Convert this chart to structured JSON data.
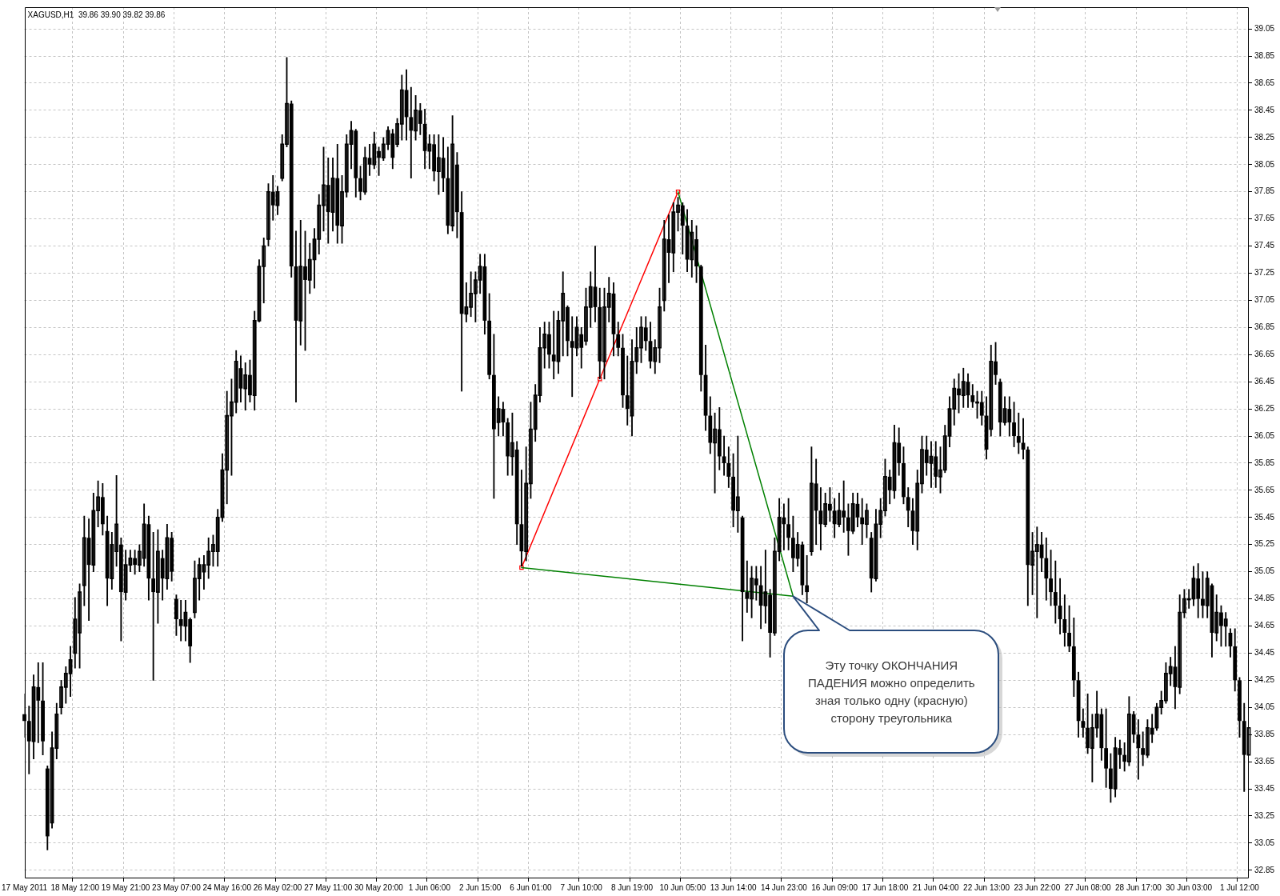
{
  "chart_data": {
    "type": "candlestick",
    "title": "XAGUSD,H1  39.86 39.90 39.82 39.86",
    "categories": [
      "17 May 2011",
      null,
      null,
      null,
      null,
      null,
      null,
      null,
      null,
      null,
      null,
      "18 May 12:00",
      null,
      null,
      null,
      null,
      null,
      null,
      null,
      null,
      null,
      null,
      "19 May 21:00",
      null,
      null,
      null,
      null,
      null,
      null,
      null,
      null,
      null,
      null,
      "23 May 07:00",
      null,
      null,
      null,
      null,
      null,
      null,
      null,
      null,
      null,
      null,
      "24 May 16:00",
      null,
      null,
      null,
      null,
      null,
      null,
      null,
      null,
      null,
      null,
      "26 May 02:00",
      null,
      null,
      null,
      null,
      null,
      null,
      null,
      null,
      null,
      null,
      "27 May 11:00",
      null,
      null,
      null,
      null,
      null,
      null,
      null,
      null,
      null,
      null,
      "30 May 20:00",
      null,
      null,
      null,
      null,
      null,
      null,
      null,
      null,
      null,
      null,
      "1 Jun 06:00",
      null,
      null,
      null,
      null,
      null,
      null,
      null,
      null,
      null,
      null,
      "2 Jun 15:00",
      null,
      null,
      null,
      null,
      null,
      null,
      null,
      null,
      null,
      null,
      "6 Jun 01:00",
      null,
      null,
      null,
      null,
      null,
      null,
      null,
      null,
      null,
      null,
      "7 Jun 10:00",
      null,
      null,
      null,
      null,
      null,
      null,
      null,
      null,
      null,
      null,
      "8 Jun 19:00",
      null,
      null,
      null,
      null,
      null,
      null,
      null,
      null,
      null,
      null,
      "10 Jun 05:00",
      null,
      null,
      null,
      null,
      null,
      null,
      null,
      null,
      null,
      null,
      "13 Jun 14:00",
      null,
      null,
      null,
      null,
      null,
      null,
      null,
      null,
      null,
      null,
      "14 Jun 23:00",
      null,
      null,
      null,
      null,
      null,
      null,
      null,
      null,
      null,
      null,
      "16 Jun 09:00",
      null,
      null,
      null,
      null,
      null,
      null,
      null,
      null,
      null,
      null,
      "17 Jun 18:00",
      null,
      null,
      null,
      null,
      null,
      null,
      null,
      null,
      null,
      null,
      "21 Jun 04:00",
      null,
      null,
      null,
      null,
      null,
      null,
      null,
      null,
      null,
      null,
      "22 Jun 13:00",
      null,
      null,
      null,
      null,
      null,
      null,
      null,
      null,
      null,
      null,
      "23 Jun 22:00",
      null,
      null,
      null,
      null,
      null,
      null,
      null,
      null,
      null,
      null,
      "27 Jun 08:00",
      null,
      null,
      null,
      null,
      null,
      null,
      null,
      null,
      null,
      null,
      "28 Jun 17:00",
      null,
      null,
      null,
      null,
      null,
      null,
      null,
      null,
      null,
      null,
      "30 Jun 03:00",
      null,
      null,
      null,
      null,
      null,
      null,
      null,
      null,
      null,
      null,
      "1 Jul 12:00",
      null,
      null
    ],
    "ohlc": [
      [
        34.0,
        34.15,
        33.83,
        33.95
      ],
      [
        33.95,
        34.06,
        33.56,
        33.8
      ],
      [
        33.8,
        34.29,
        33.67,
        34.2
      ],
      [
        34.2,
        34.38,
        33.79,
        34.1
      ],
      [
        34.1,
        34.38,
        33.7,
        33.8
      ],
      [
        33.6,
        33.62,
        33.0,
        33.1
      ],
      [
        33.2,
        33.87,
        33.16,
        33.75
      ],
      [
        33.75,
        34.08,
        33.67,
        34.0
      ],
      [
        34.05,
        34.25,
        34.0,
        34.2
      ],
      [
        34.2,
        34.35,
        34.08,
        34.3
      ],
      [
        34.3,
        34.5,
        34.13,
        34.4
      ],
      [
        34.45,
        34.86,
        34.34,
        34.7
      ],
      [
        34.6,
        34.96,
        34.34,
        34.9
      ],
      [
        34.95,
        35.46,
        34.8,
        35.3
      ],
      [
        35.3,
        35.44,
        34.69,
        35.1
      ],
      [
        35.1,
        35.63,
        35.05,
        35.5
      ],
      [
        35.5,
        35.72,
        35.38,
        35.6
      ],
      [
        35.6,
        35.7,
        35.32,
        35.4
      ],
      [
        35.35,
        35.46,
        34.8,
        35.0
      ],
      [
        35.0,
        35.34,
        34.92,
        35.25
      ],
      [
        35.2,
        35.76,
        35.09,
        35.4
      ],
      [
        35.25,
        35.3,
        34.54,
        34.9
      ],
      [
        34.9,
        35.21,
        34.84,
        35.1
      ],
      [
        35.1,
        35.21,
        35.05,
        35.15
      ],
      [
        35.15,
        35.21,
        35.03,
        35.1
      ],
      [
        35.1,
        35.25,
        35.05,
        35.2
      ],
      [
        35.15,
        35.55,
        35.09,
        35.4
      ],
      [
        35.4,
        35.46,
        34.84,
        35.0
      ],
      [
        35.0,
        35.34,
        34.25,
        34.9
      ],
      [
        34.9,
        35.36,
        34.67,
        35.2
      ],
      [
        35.15,
        35.21,
        34.84,
        35.0
      ],
      [
        35.0,
        35.4,
        34.92,
        35.3
      ],
      [
        35.3,
        35.34,
        34.98,
        35.05
      ],
      [
        34.85,
        34.88,
        34.58,
        34.7
      ],
      [
        34.7,
        34.84,
        34.54,
        34.65
      ],
      [
        34.65,
        34.84,
        34.54,
        34.75
      ],
      [
        34.7,
        34.71,
        34.38,
        34.5
      ],
      [
        34.75,
        35.13,
        34.71,
        35.0
      ],
      [
        35.0,
        35.15,
        34.84,
        35.1
      ],
      [
        35.05,
        35.17,
        34.92,
        35.1
      ],
      [
        35.1,
        35.3,
        35.0,
        35.2
      ],
      [
        35.2,
        35.32,
        35.09,
        35.25
      ],
      [
        35.2,
        35.51,
        35.09,
        35.45
      ],
      [
        35.45,
        35.92,
        35.42,
        35.8
      ],
      [
        35.8,
        36.38,
        35.55,
        36.2
      ],
      [
        36.2,
        36.47,
        35.76,
        36.3
      ],
      [
        36.3,
        36.68,
        36.22,
        36.6
      ],
      [
        36.55,
        36.64,
        36.3,
        36.4
      ],
      [
        36.4,
        36.59,
        36.24,
        36.5
      ],
      [
        36.5,
        36.61,
        36.3,
        36.35
      ],
      [
        36.35,
        36.97,
        36.24,
        36.9
      ],
      [
        36.9,
        37.35,
        36.89,
        37.3
      ],
      [
        37.3,
        37.51,
        37.03,
        37.45
      ],
      [
        37.5,
        37.91,
        37.45,
        37.85
      ],
      [
        37.85,
        37.97,
        37.64,
        37.75
      ],
      [
        37.75,
        37.89,
        37.68,
        37.85
      ],
      [
        37.95,
        38.27,
        37.93,
        38.2
      ],
      [
        38.2,
        38.84,
        38.18,
        38.5
      ],
      [
        38.5,
        38.52,
        37.22,
        37.3
      ],
      [
        37.3,
        37.56,
        36.3,
        36.9
      ],
      [
        36.9,
        37.64,
        36.72,
        37.3
      ],
      [
        37.3,
        37.56,
        36.68,
        37.2
      ],
      [
        37.2,
        37.47,
        37.1,
        37.35
      ],
      [
        37.35,
        37.58,
        37.14,
        37.5
      ],
      [
        37.5,
        37.83,
        37.39,
        37.75
      ],
      [
        37.75,
        38.18,
        37.56,
        37.9
      ],
      [
        37.9,
        38.1,
        37.47,
        37.7
      ],
      [
        37.7,
        38.1,
        37.56,
        37.95
      ],
      [
        37.95,
        38.2,
        37.47,
        37.6
      ],
      [
        37.6,
        37.97,
        37.47,
        37.85
      ],
      [
        37.85,
        38.27,
        37.81,
        38.2
      ],
      [
        38.2,
        38.37,
        38.02,
        38.3
      ],
      [
        38.3,
        38.31,
        37.81,
        37.95
      ],
      [
        37.95,
        38.04,
        37.79,
        37.85
      ],
      [
        37.85,
        38.18,
        37.83,
        38.1
      ],
      [
        38.1,
        38.2,
        37.97,
        38.05
      ],
      [
        38.05,
        38.29,
        38.02,
        38.2
      ],
      [
        38.15,
        38.18,
        37.97,
        38.1
      ],
      [
        38.1,
        38.25,
        38.08,
        38.2
      ],
      [
        38.2,
        38.33,
        38.16,
        38.3
      ],
      [
        38.28,
        38.31,
        38.02,
        38.1
      ],
      [
        38.2,
        38.39,
        38.18,
        38.35
      ],
      [
        38.35,
        38.71,
        38.23,
        38.6
      ],
      [
        38.6,
        38.75,
        38.23,
        38.4
      ],
      [
        38.4,
        38.62,
        37.95,
        38.3
      ],
      [
        38.3,
        38.56,
        38.23,
        38.45
      ],
      [
        38.45,
        38.5,
        38.27,
        38.35
      ],
      [
        38.35,
        38.46,
        38.02,
        38.15
      ],
      [
        38.15,
        38.27,
        38.02,
        38.2
      ],
      [
        38.2,
        38.27,
        37.93,
        38.0
      ],
      [
        38.0,
        38.27,
        37.83,
        38.1
      ],
      [
        38.1,
        38.25,
        37.85,
        37.95
      ],
      [
        37.95,
        38.18,
        37.54,
        37.6
      ],
      [
        37.6,
        38.41,
        37.56,
        38.2
      ],
      [
        38.05,
        38.14,
        37.51,
        37.7
      ],
      [
        37.7,
        37.85,
        36.38,
        36.95
      ],
      [
        36.95,
        37.18,
        36.89,
        37.0
      ],
      [
        37.0,
        37.26,
        36.93,
        37.1
      ],
      [
        37.1,
        37.26,
        36.89,
        37.2
      ],
      [
        37.2,
        37.39,
        37.1,
        37.3
      ],
      [
        37.3,
        37.39,
        36.8,
        36.9
      ],
      [
        36.9,
        37.1,
        36.47,
        36.5
      ],
      [
        36.5,
        36.8,
        35.59,
        36.1
      ],
      [
        36.15,
        36.34,
        36.05,
        36.25
      ],
      [
        36.25,
        36.3,
        36.05,
        36.15
      ],
      [
        36.15,
        36.18,
        35.76,
        35.9
      ],
      [
        35.9,
        36.22,
        35.76,
        36.0
      ],
      [
        35.95,
        36.01,
        35.25,
        35.4
      ],
      [
        35.4,
        35.8,
        35.09,
        35.2
      ],
      [
        35.2,
        35.97,
        35.13,
        35.7
      ],
      [
        35.7,
        36.3,
        35.59,
        36.1
      ],
      [
        36.1,
        36.43,
        36.01,
        36.35
      ],
      [
        36.35,
        36.85,
        36.3,
        36.7
      ],
      [
        36.7,
        36.89,
        36.55,
        36.8
      ],
      [
        36.8,
        36.89,
        36.55,
        36.65
      ],
      [
        36.65,
        36.97,
        36.47,
        36.6
      ],
      [
        36.6,
        36.97,
        36.51,
        36.9
      ],
      [
        36.9,
        37.26,
        36.64,
        37.1
      ],
      [
        37.0,
        37.01,
        36.64,
        36.75
      ],
      [
        36.75,
        36.93,
        36.34,
        36.7
      ],
      [
        36.7,
        36.93,
        36.64,
        36.85
      ],
      [
        36.8,
        36.85,
        36.55,
        36.7
      ],
      [
        36.75,
        37.14,
        36.72,
        37.0
      ],
      [
        37.0,
        37.26,
        36.85,
        37.15
      ],
      [
        37.15,
        37.45,
        36.89,
        37.0
      ],
      [
        37.0,
        37.14,
        36.47,
        36.6
      ],
      [
        36.6,
        37.14,
        36.47,
        37.0
      ],
      [
        37.0,
        37.22,
        36.89,
        37.1
      ],
      [
        37.1,
        37.18,
        36.64,
        36.8
      ],
      [
        36.8,
        36.89,
        36.64,
        36.7
      ],
      [
        36.7,
        36.8,
        36.26,
        36.35
      ],
      [
        36.35,
        36.64,
        36.13,
        36.25
      ],
      [
        36.2,
        36.76,
        36.05,
        36.6
      ],
      [
        36.6,
        36.85,
        36.51,
        36.7
      ],
      [
        36.7,
        36.93,
        36.59,
        36.85
      ],
      [
        36.85,
        36.93,
        36.68,
        36.75
      ],
      [
        36.75,
        36.89,
        36.55,
        36.6
      ],
      [
        36.6,
        36.76,
        36.51,
        36.7
      ],
      [
        36.7,
        37.14,
        36.59,
        37.0
      ],
      [
        37.05,
        37.64,
        36.97,
        37.5
      ],
      [
        37.5,
        37.68,
        37.18,
        37.4
      ],
      [
        37.4,
        37.77,
        37.26,
        37.7
      ],
      [
        37.7,
        37.81,
        37.56,
        37.75
      ],
      [
        37.75,
        37.77,
        37.39,
        37.6
      ],
      [
        37.6,
        37.72,
        37.26,
        37.35
      ],
      [
        37.35,
        37.64,
        37.22,
        37.55
      ],
      [
        37.5,
        37.6,
        37.18,
        37.3
      ],
      [
        37.3,
        37.31,
        36.38,
        36.5
      ],
      [
        36.5,
        36.72,
        36.09,
        36.2
      ],
      [
        36.2,
        36.34,
        35.92,
        36.0
      ],
      [
        36.0,
        36.22,
        35.63,
        36.1
      ],
      [
        36.1,
        36.26,
        35.8,
        35.9
      ],
      [
        35.9,
        36.05,
        35.76,
        35.85
      ],
      [
        35.85,
        35.97,
        35.67,
        35.75
      ],
      [
        35.75,
        35.92,
        35.38,
        35.5
      ],
      [
        35.5,
        36.05,
        35.34,
        35.6
      ],
      [
        35.45,
        35.46,
        34.54,
        34.9
      ],
      [
        34.9,
        35.13,
        34.75,
        34.85
      ],
      [
        34.85,
        35.09,
        34.71,
        35.0
      ],
      [
        35.0,
        35.09,
        34.84,
        34.95
      ],
      [
        34.95,
        35.09,
        34.63,
        34.8
      ],
      [
        34.8,
        35.21,
        34.67,
        34.9
      ],
      [
        34.88,
        34.92,
        34.42,
        34.6
      ],
      [
        34.6,
        35.3,
        34.58,
        35.2
      ],
      [
        35.2,
        35.59,
        35.13,
        35.45
      ],
      [
        35.45,
        35.55,
        35.21,
        35.4
      ],
      [
        35.4,
        35.59,
        35.21,
        35.3
      ],
      [
        35.3,
        35.46,
        35.05,
        35.15
      ],
      [
        35.15,
        35.34,
        35.09,
        35.25
      ],
      [
        35.25,
        35.27,
        34.88,
        34.95
      ],
      [
        34.95,
        35.17,
        34.82,
        34.9
      ],
      [
        35.2,
        35.97,
        35.17,
        35.7
      ],
      [
        35.7,
        35.88,
        35.25,
        35.5
      ],
      [
        35.5,
        35.67,
        35.21,
        35.4
      ],
      [
        35.4,
        35.63,
        35.38,
        35.55
      ],
      [
        35.55,
        35.67,
        35.42,
        35.5
      ],
      [
        35.5,
        35.59,
        35.3,
        35.4
      ],
      [
        35.4,
        35.63,
        35.38,
        35.5
      ],
      [
        35.5,
        35.72,
        35.34,
        35.45
      ],
      [
        35.45,
        35.55,
        35.17,
        35.35
      ],
      [
        35.35,
        35.63,
        35.33,
        35.55
      ],
      [
        35.55,
        35.63,
        35.38,
        35.45
      ],
      [
        35.45,
        35.59,
        35.25,
        35.4
      ],
      [
        35.4,
        35.55,
        35.3,
        35.5
      ],
      [
        35.3,
        35.34,
        34.9,
        35.0
      ],
      [
        35.0,
        35.51,
        34.98,
        35.4
      ],
      [
        35.4,
        35.59,
        35.3,
        35.5
      ],
      [
        35.5,
        35.88,
        35.46,
        35.75
      ],
      [
        35.75,
        35.8,
        35.55,
        35.65
      ],
      [
        35.65,
        36.13,
        35.59,
        36.0
      ],
      [
        36.0,
        36.11,
        35.76,
        35.85
      ],
      [
        35.85,
        35.97,
        35.55,
        35.6
      ],
      [
        35.6,
        35.67,
        35.38,
        35.5
      ],
      [
        35.5,
        35.59,
        35.25,
        35.35
      ],
      [
        35.35,
        35.8,
        35.21,
        35.7
      ],
      [
        35.7,
        36.05,
        35.63,
        35.95
      ],
      [
        35.95,
        36.05,
        35.76,
        35.85
      ],
      [
        35.85,
        36.01,
        35.67,
        35.9
      ],
      [
        35.9,
        36.01,
        35.67,
        35.75
      ],
      [
        35.75,
        35.97,
        35.63,
        35.8
      ],
      [
        35.8,
        36.13,
        35.78,
        36.05
      ],
      [
        36.05,
        36.34,
        35.97,
        36.25
      ],
      [
        36.25,
        36.47,
        36.13,
        36.4
      ],
      [
        36.4,
        36.51,
        36.22,
        36.35
      ],
      [
        36.35,
        36.55,
        36.26,
        36.45
      ],
      [
        36.45,
        36.51,
        36.26,
        36.35
      ],
      [
        36.35,
        36.43,
        36.26,
        36.3
      ],
      [
        36.3,
        36.38,
        36.18,
        36.3
      ],
      [
        36.3,
        36.38,
        36.13,
        36.2
      ],
      [
        36.2,
        36.34,
        35.88,
        35.95
      ],
      [
        36.1,
        36.72,
        36.05,
        36.6
      ],
      [
        36.6,
        36.74,
        36.43,
        36.5
      ],
      [
        36.45,
        36.47,
        36.05,
        36.15
      ],
      [
        36.15,
        36.34,
        36.13,
        36.25
      ],
      [
        36.25,
        36.34,
        36.05,
        36.15
      ],
      [
        36.15,
        36.3,
        35.97,
        36.05
      ],
      [
        36.05,
        36.22,
        35.92,
        36.0
      ],
      [
        36.0,
        36.18,
        35.88,
        35.95
      ],
      [
        35.95,
        35.97,
        34.8,
        35.1
      ],
      [
        35.1,
        35.34,
        34.88,
        35.2
      ],
      [
        35.2,
        35.38,
        34.71,
        35.25
      ],
      [
        35.25,
        35.34,
        35.05,
        35.15
      ],
      [
        35.15,
        35.3,
        34.84,
        35.0
      ],
      [
        35.0,
        35.21,
        34.8,
        34.9
      ],
      [
        34.9,
        35.13,
        34.67,
        34.8
      ],
      [
        34.8,
        35.0,
        34.59,
        34.7
      ],
      [
        34.7,
        34.88,
        34.5,
        34.6
      ],
      [
        34.6,
        34.8,
        34.46,
        34.5
      ],
      [
        34.5,
        34.71,
        34.13,
        34.25
      ],
      [
        34.25,
        34.31,
        33.83,
        33.95
      ],
      [
        33.95,
        34.04,
        33.83,
        33.9
      ],
      [
        33.9,
        34.15,
        33.71,
        33.75
      ],
      [
        33.75,
        34.0,
        33.5,
        33.9
      ],
      [
        33.9,
        34.17,
        33.83,
        34.0
      ],
      [
        34.0,
        34.04,
        33.66,
        33.75
      ],
      [
        33.75,
        34.04,
        33.46,
        33.6
      ],
      [
        33.6,
        33.71,
        33.35,
        33.45
      ],
      [
        33.45,
        33.83,
        33.39,
        33.75
      ],
      [
        33.75,
        33.81,
        33.6,
        33.7
      ],
      [
        33.7,
        33.79,
        33.58,
        33.65
      ],
      [
        33.65,
        34.13,
        33.62,
        34.0
      ],
      [
        34.0,
        34.02,
        33.79,
        33.85
      ],
      [
        33.85,
        33.96,
        33.52,
        33.75
      ],
      [
        33.75,
        33.87,
        33.62,
        33.7
      ],
      [
        33.7,
        33.96,
        33.68,
        33.9
      ],
      [
        33.9,
        34.0,
        33.79,
        33.85
      ],
      [
        33.9,
        34.08,
        33.88,
        34.05
      ],
      [
        34.05,
        34.17,
        34.0,
        34.1
      ],
      [
        34.1,
        34.38,
        34.08,
        34.3
      ],
      [
        34.3,
        34.42,
        34.21,
        34.35
      ],
      [
        34.35,
        34.5,
        34.04,
        34.2
      ],
      [
        34.2,
        34.88,
        34.15,
        34.75
      ],
      [
        34.75,
        34.92,
        34.71,
        34.85
      ],
      [
        34.85,
        34.92,
        34.78,
        34.85
      ],
      [
        34.85,
        35.09,
        34.8,
        35.0
      ],
      [
        35.0,
        35.11,
        34.71,
        34.85
      ],
      [
        34.85,
        35.05,
        34.71,
        34.8
      ],
      [
        34.8,
        35.05,
        34.71,
        35.0
      ],
      [
        34.95,
        34.96,
        34.42,
        34.6
      ],
      [
        34.6,
        34.88,
        34.54,
        34.75
      ],
      [
        34.75,
        34.8,
        34.5,
        34.65
      ],
      [
        34.65,
        34.75,
        34.5,
        34.7
      ],
      [
        34.6,
        34.63,
        34.42,
        34.5
      ],
      [
        34.5,
        34.63,
        34.17,
        34.25
      ],
      [
        34.25,
        34.27,
        33.83,
        33.95
      ],
      [
        33.95,
        34.08,
        33.43,
        33.7
      ],
      [
        33.7,
        34.04,
        33.62,
        33.9
      ]
    ],
    "color": "#000000",
    "series": [
      {
        "type": "line",
        "color": "#ff0000",
        "marker": "square",
        "values": [
          null,
          null,
          null,
          null,
          null,
          null,
          null,
          null,
          null,
          null,
          null,
          null,
          null,
          null,
          null,
          null,
          null,
          null,
          null,
          null,
          null,
          null,
          null,
          null,
          null,
          null,
          null,
          null,
          null,
          null,
          null,
          null,
          null,
          null,
          null,
          null,
          null,
          null,
          null,
          null,
          null,
          null,
          null,
          null,
          null,
          null,
          null,
          null,
          null,
          null,
          null,
          null,
          null,
          null,
          null,
          null,
          null,
          null,
          null,
          null,
          null,
          null,
          null,
          null,
          null,
          null,
          null,
          null,
          null,
          null,
          null,
          null,
          null,
          null,
          null,
          null,
          null,
          null,
          null,
          null,
          null,
          null,
          null,
          null,
          null,
          null,
          null,
          null,
          null,
          null,
          null,
          null,
          null,
          null,
          null,
          null,
          null,
          null,
          null,
          null,
          null,
          null,
          null,
          null,
          null,
          null,
          null,
          null,
          35.08,
          null,
          null,
          null,
          null,
          null,
          null,
          null,
          null,
          null,
          null,
          null,
          null,
          null,
          null,
          null,
          null,
          36.47,
          null,
          null,
          null,
          null,
          null,
          null,
          null,
          null,
          null,
          null,
          null,
          null,
          null,
          null,
          null,
          null,
          37.85,
          null,
          null,
          null,
          null,
          null,
          null,
          null,
          null,
          null,
          null,
          null,
          null,
          null,
          null,
          null,
          null,
          null,
          null,
          null,
          null,
          null,
          null,
          null,
          null,
          null,
          null,
          null,
          null,
          null,
          null,
          null,
          null,
          null,
          null,
          null,
          null,
          null,
          null,
          null,
          null,
          null,
          null,
          null,
          null,
          null,
          null,
          null,
          null,
          null,
          null,
          null,
          null,
          null,
          null,
          null,
          null,
          null,
          null,
          null,
          null,
          null,
          null,
          null,
          null,
          null,
          null,
          null,
          null,
          null,
          null,
          null,
          null,
          null,
          null,
          null,
          null,
          null,
          null,
          null,
          null,
          null,
          null,
          null,
          null,
          null,
          null,
          null,
          null,
          null,
          null,
          null,
          null,
          null,
          null,
          null,
          null,
          null,
          null,
          null,
          null,
          null,
          null,
          null,
          null,
          null,
          null,
          null,
          null,
          null,
          null,
          null,
          null,
          null,
          null,
          null,
          null,
          null,
          null,
          null,
          null,
          null,
          null,
          null,
          null
        ]
      },
      {
        "type": "line",
        "color": "#008000",
        "values": [
          null,
          null,
          null,
          null,
          null,
          null,
          null,
          null,
          null,
          null,
          null,
          null,
          null,
          null,
          null,
          null,
          null,
          null,
          null,
          null,
          null,
          null,
          null,
          null,
          null,
          null,
          null,
          null,
          null,
          null,
          null,
          null,
          null,
          null,
          null,
          null,
          null,
          null,
          null,
          null,
          null,
          null,
          null,
          null,
          null,
          null,
          null,
          null,
          null,
          null,
          null,
          null,
          null,
          null,
          null,
          null,
          null,
          null,
          null,
          null,
          null,
          null,
          null,
          null,
          null,
          null,
          null,
          null,
          null,
          null,
          null,
          null,
          null,
          null,
          null,
          null,
          null,
          null,
          null,
          null,
          null,
          null,
          null,
          null,
          null,
          null,
          null,
          null,
          null,
          null,
          null,
          null,
          null,
          null,
          null,
          null,
          null,
          null,
          null,
          null,
          null,
          null,
          null,
          null,
          null,
          null,
          null,
          null,
          null,
          null,
          null,
          null,
          null,
          null,
          null,
          null,
          null,
          null,
          null,
          null,
          null,
          null,
          null,
          null,
          null,
          null,
          null,
          null,
          null,
          null,
          null,
          null,
          null,
          null,
          null,
          null,
          null,
          null,
          null,
          null,
          null,
          null,
          37.85,
          null,
          null,
          null,
          null,
          null,
          null,
          null,
          null,
          null,
          null,
          null,
          null,
          null,
          null,
          null,
          null,
          null,
          null,
          null,
          null,
          null,
          null,
          null,
          null,
          34.87,
          null,
          null,
          null,
          null,
          null,
          null,
          null,
          null,
          null,
          null,
          null,
          null,
          null,
          null,
          null,
          null,
          null,
          null,
          null,
          null,
          null,
          null,
          null,
          null,
          null,
          null,
          null,
          null,
          null,
          null,
          null,
          null,
          null,
          null,
          null,
          null,
          null,
          null,
          null,
          null,
          null,
          null,
          null,
          null,
          null,
          null,
          null,
          null,
          null,
          null,
          null,
          null,
          null,
          null,
          null,
          null,
          null,
          null,
          null,
          null,
          null,
          null,
          null,
          null,
          null,
          null,
          null,
          null,
          null,
          null,
          null,
          null,
          null,
          null,
          null,
          null,
          null,
          null,
          null,
          null,
          null,
          null,
          null,
          null,
          null,
          null,
          null,
          null,
          null,
          null,
          null,
          null,
          null,
          null,
          null,
          null,
          null,
          null,
          null
        ]
      },
      {
        "type": "line",
        "color": "#008000",
        "values": [
          null,
          null,
          null,
          null,
          null,
          null,
          null,
          null,
          null,
          null,
          null,
          null,
          null,
          null,
          null,
          null,
          null,
          null,
          null,
          null,
          null,
          null,
          null,
          null,
          null,
          null,
          null,
          null,
          null,
          null,
          null,
          null,
          null,
          null,
          null,
          null,
          null,
          null,
          null,
          null,
          null,
          null,
          null,
          null,
          null,
          null,
          null,
          null,
          null,
          null,
          null,
          null,
          null,
          null,
          null,
          null,
          null,
          null,
          null,
          null,
          null,
          null,
          null,
          null,
          null,
          null,
          null,
          null,
          null,
          null,
          null,
          null,
          null,
          null,
          null,
          null,
          null,
          null,
          null,
          null,
          null,
          null,
          null,
          null,
          null,
          null,
          null,
          null,
          null,
          null,
          null,
          null,
          null,
          null,
          null,
          null,
          null,
          null,
          null,
          null,
          null,
          null,
          null,
          null,
          null,
          null,
          null,
          null,
          35.08,
          null,
          null,
          null,
          null,
          null,
          null,
          null,
          null,
          null,
          null,
          null,
          null,
          null,
          null,
          null,
          null,
          null,
          null,
          null,
          null,
          null,
          null,
          null,
          null,
          null,
          null,
          null,
          null,
          null,
          null,
          null,
          null,
          null,
          null,
          null,
          null,
          null,
          null,
          null,
          null,
          null,
          null,
          null,
          null,
          null,
          null,
          null,
          null,
          null,
          null,
          null,
          null,
          null,
          null,
          null,
          null,
          null,
          null,
          34.87,
          null,
          null,
          null,
          null,
          null,
          null,
          null,
          null,
          null,
          null,
          null,
          null,
          null,
          null,
          null,
          null,
          null,
          null,
          null,
          null,
          null,
          null,
          null,
          null,
          null,
          null,
          null,
          null,
          null,
          null,
          null,
          null,
          null,
          null,
          null,
          null,
          null,
          null,
          null,
          null,
          null,
          null,
          null,
          null,
          null,
          null,
          null,
          null,
          null,
          null,
          null,
          null,
          null,
          null,
          null,
          null,
          null,
          null,
          null,
          null,
          null,
          null,
          null,
          null,
          null,
          null,
          null,
          null,
          null,
          null,
          null,
          null,
          null,
          null,
          null,
          null,
          null,
          null,
          null,
          null,
          null,
          null,
          null,
          null,
          null,
          null,
          null,
          null,
          null,
          null,
          null,
          null,
          null,
          null,
          null,
          null,
          null,
          null,
          null
        ]
      }
    ],
    "ylim": [
      32.79,
      39.21
    ],
    "yticks": [
      32.85,
      33.05,
      33.25,
      33.45,
      33.65,
      33.85,
      34.05,
      34.25,
      34.45,
      34.65,
      34.85,
      35.05,
      35.25,
      35.45,
      35.65,
      35.85,
      36.05,
      36.25,
      36.45,
      36.65,
      36.85,
      37.05,
      37.25,
      37.45,
      37.65,
      37.85,
      38.05,
      38.25,
      38.45,
      38.65,
      38.85,
      39.05
    ],
    "grid": true,
    "annotations": [
      "Эту точку ОКОНЧАНИЯ\nПАДЕНИЯ можно определить\nзная только одну (красную)\nсторону треугольника"
    ]
  }
}
